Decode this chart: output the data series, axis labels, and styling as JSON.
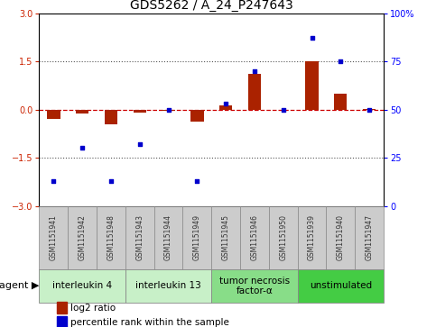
{
  "title": "GDS5262 / A_24_P247643",
  "samples": [
    "GSM1151941",
    "GSM1151942",
    "GSM1151948",
    "GSM1151943",
    "GSM1151944",
    "GSM1151949",
    "GSM1151945",
    "GSM1151946",
    "GSM1151950",
    "GSM1151939",
    "GSM1151940",
    "GSM1151947"
  ],
  "log2_ratio": [
    -0.3,
    -0.13,
    -0.45,
    -0.1,
    -0.03,
    -0.38,
    0.12,
    1.1,
    -0.02,
    1.5,
    0.5,
    0.03
  ],
  "percentile_rank": [
    13,
    30,
    13,
    32,
    50,
    13,
    53,
    70,
    50,
    87,
    75,
    50
  ],
  "groups": [
    {
      "label": "interleukin 4",
      "indices": [
        0,
        1,
        2
      ],
      "color": "#c8f0c8"
    },
    {
      "label": "interleukin 13",
      "indices": [
        3,
        4,
        5
      ],
      "color": "#c8f0c8"
    },
    {
      "label": "tumor necrosis\nfactor-α",
      "indices": [
        6,
        7,
        8
      ],
      "color": "#88dd88"
    },
    {
      "label": "unstimulated",
      "indices": [
        9,
        10,
        11
      ],
      "color": "#44cc44"
    }
  ],
  "ylim_left": [
    -3,
    3
  ],
  "ylim_right": [
    0,
    100
  ],
  "yticks_left": [
    -3,
    -1.5,
    0,
    1.5,
    3
  ],
  "yticks_right": [
    0,
    25,
    50,
    75,
    100
  ],
  "bar_color": "#aa2200",
  "scatter_color": "#0000cc",
  "hline_color": "#cc0000",
  "dotline_color": "#555555",
  "bg_color": "#ffffff",
  "plot_bg": "#ffffff",
  "bar_width": 0.45,
  "title_fontsize": 10,
  "tick_fontsize": 7,
  "legend_fontsize": 7.5,
  "agent_fontsize": 8,
  "group_label_fontsize": 7.5,
  "sample_fontsize": 5.5
}
